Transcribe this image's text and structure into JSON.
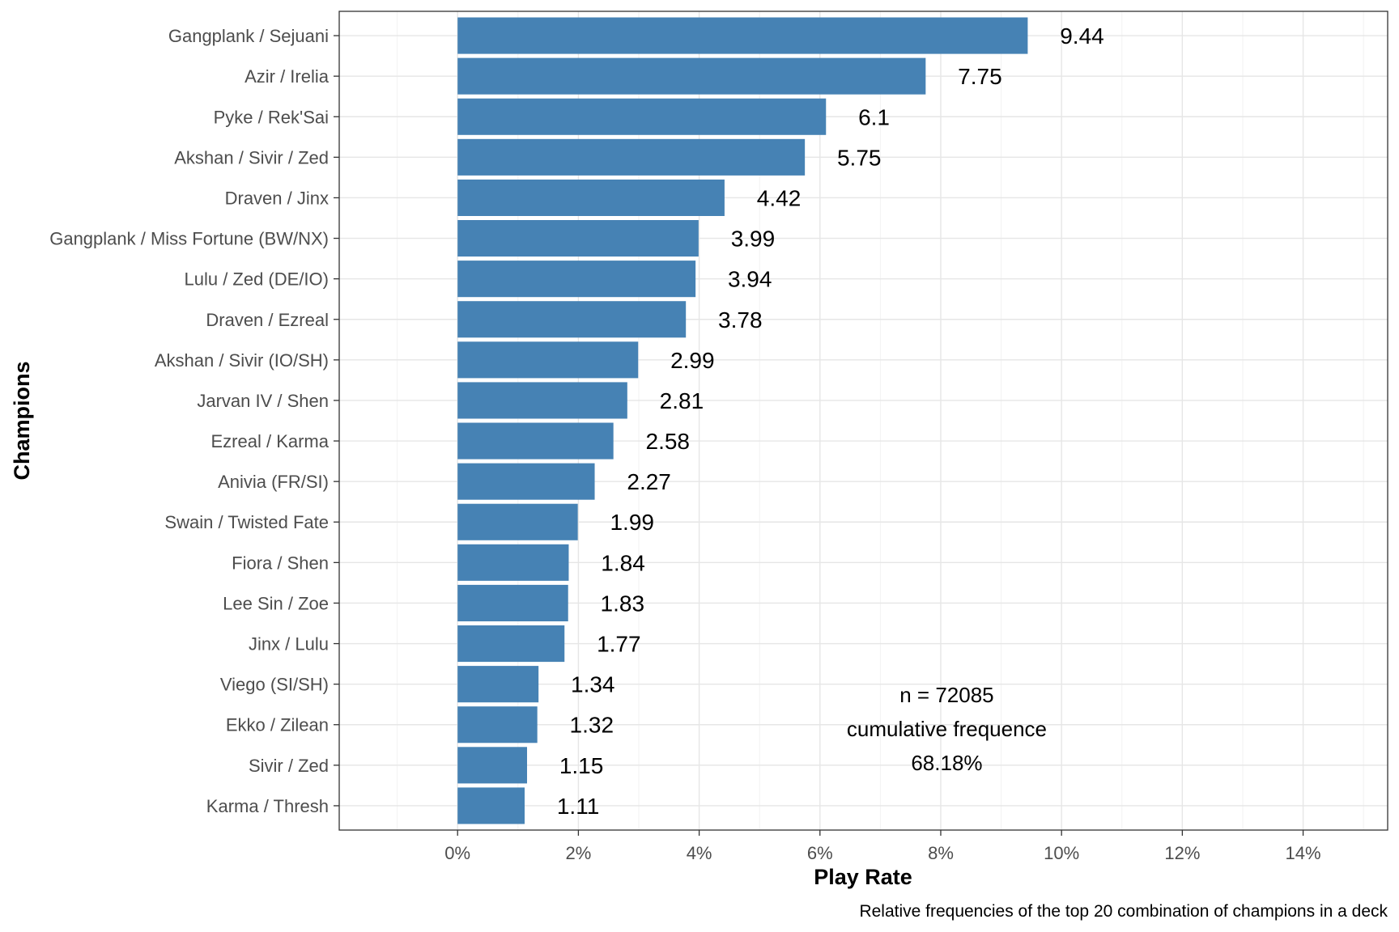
{
  "chart_data": {
    "type": "bar",
    "orientation": "horizontal",
    "categories": [
      "Gangplank / Sejuani",
      "Azir / Irelia",
      "Pyke / Rek'Sai",
      "Akshan / Sivir / Zed",
      "Draven / Jinx",
      "Gangplank / Miss Fortune (BW/NX)",
      "Lulu / Zed (DE/IO)",
      "Draven / Ezreal",
      "Akshan / Sivir (IO/SH)",
      "Jarvan IV / Shen",
      "Ezreal / Karma",
      "Anivia (FR/SI)",
      "Swain / Twisted Fate",
      "Fiora / Shen",
      "Lee Sin / Zoe",
      "Jinx / Lulu",
      "Viego (SI/SH)",
      "Ekko / Zilean",
      "Sivir / Zed",
      "Karma / Thresh"
    ],
    "values": [
      9.44,
      7.75,
      6.1,
      5.75,
      4.42,
      3.99,
      3.94,
      3.78,
      2.99,
      2.81,
      2.58,
      2.27,
      1.99,
      1.84,
      1.83,
      1.77,
      1.34,
      1.32,
      1.15,
      1.11
    ],
    "value_labels": [
      "9.44",
      "7.75",
      "6.1",
      "5.75",
      "4.42",
      "3.99",
      "3.94",
      "3.78",
      "2.99",
      "2.81",
      "2.58",
      "2.27",
      "1.99",
      "1.84",
      "1.83",
      "1.77",
      "1.34",
      "1.32",
      "1.15",
      "1.11"
    ],
    "xlabel": "Play Rate",
    "ylabel": "Champions",
    "xlim": [
      -1.96,
      15.4
    ],
    "xticks": [
      0,
      2,
      4,
      6,
      8,
      10,
      12,
      14
    ],
    "xtick_labels": [
      "0%",
      "2%",
      "4%",
      "6%",
      "8%",
      "10%",
      "12%",
      "14%"
    ],
    "grid": true,
    "bar_color": "#4682B4",
    "annotation": {
      "lines": [
        "n = 72085",
        "cumulative frequence",
        "68.18%"
      ],
      "x": 8.1
    },
    "caption": "Relative frequencies of the top 20 combination of champions in a deck"
  }
}
